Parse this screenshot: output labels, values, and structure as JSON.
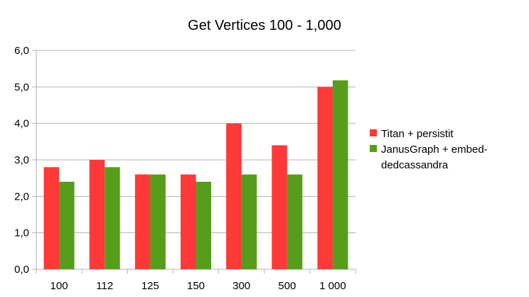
{
  "chart_data": {
    "type": "bar",
    "title": "Get Vertices 100 - 1,000",
    "categories": [
      "100",
      "112",
      "125",
      "150",
      "300",
      "500",
      "1 000"
    ],
    "series": [
      {
        "name": "Titan + persistit",
        "color": "#ff3838",
        "values": [
          2.8,
          3.0,
          2.6,
          2.6,
          4.0,
          3.4,
          5.0
        ]
      },
      {
        "name": "JanusGraph + embeddedcassandra",
        "color": "#579d1c",
        "values": [
          2.4,
          2.8,
          2.6,
          2.4,
          2.6,
          2.6,
          5.18
        ]
      }
    ],
    "legend_lines": [
      [
        "Titan + persistit"
      ],
      [
        "JanusGraph + embed-",
        "dedcassandra"
      ]
    ],
    "ylim": [
      0,
      6
    ],
    "yticks": [
      "0,0",
      "1,0",
      "2,0",
      "3,0",
      "4,0",
      "5,0",
      "6,0"
    ],
    "grid": "horizontal",
    "legend_position": "right",
    "grid_color": "#b3b3b3"
  }
}
